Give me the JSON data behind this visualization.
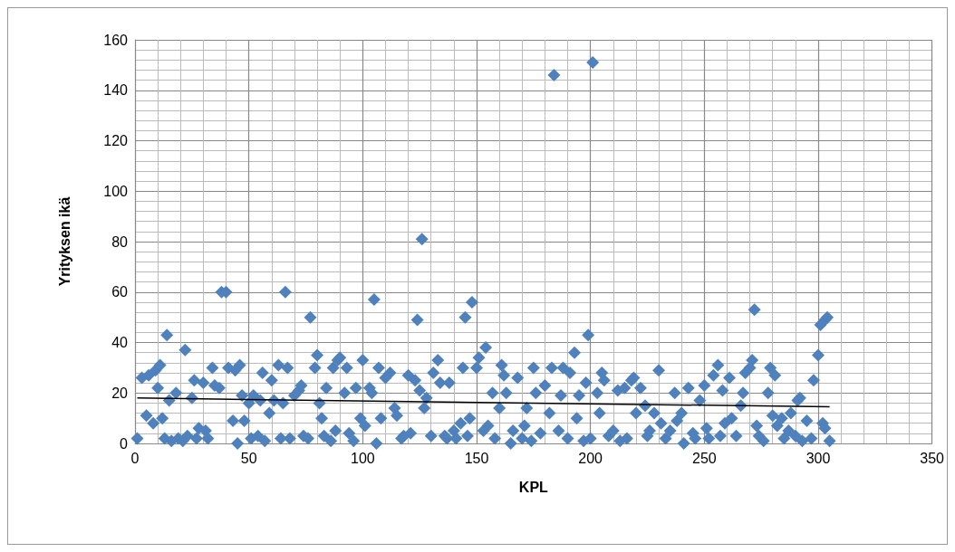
{
  "chart_data": {
    "type": "scatter",
    "xlabel": "KPL",
    "ylabel": "Yrityksen ikä",
    "xlim": [
      0,
      350
    ],
    "xticks": [
      0,
      50,
      100,
      150,
      200,
      250,
      300,
      350
    ],
    "ylim": [
      0,
      160
    ],
    "yticks": [
      0,
      20,
      40,
      60,
      80,
      100,
      120,
      140,
      160
    ],
    "grid": true,
    "series": [
      {
        "marker": "diamond",
        "color": "#4f81bd",
        "x": [
          1,
          3,
          5,
          6,
          8,
          9,
          10,
          11,
          12,
          13,
          14,
          15,
          16,
          18,
          19,
          21,
          22,
          23,
          25,
          26,
          27,
          28,
          30,
          31,
          32,
          34,
          35,
          37,
          38,
          40,
          41,
          43,
          44,
          45,
          46,
          47,
          48,
          50,
          51,
          52,
          54,
          55,
          56,
          57,
          59,
          60,
          61,
          63,
          64,
          65,
          66,
          67,
          68,
          70,
          72,
          73,
          74,
          76,
          77,
          79,
          80,
          81,
          82,
          83,
          84,
          86,
          87,
          88,
          89,
          90,
          92,
          93,
          94,
          96,
          97,
          99,
          100,
          101,
          103,
          104,
          105,
          106,
          107,
          108,
          110,
          112,
          114,
          115,
          117,
          118,
          120,
          121,
          123,
          124,
          125,
          126,
          127,
          128,
          130,
          131,
          133,
          134,
          136,
          137,
          138,
          140,
          141,
          143,
          144,
          145,
          146,
          147,
          148,
          150,
          151,
          153,
          154,
          155,
          157,
          158,
          160,
          161,
          162,
          163,
          165,
          166,
          168,
          170,
          171,
          172,
          174,
          175,
          176,
          178,
          180,
          182,
          183,
          184,
          186,
          187,
          188,
          190,
          191,
          193,
          194,
          195,
          197,
          198,
          199,
          200,
          201,
          203,
          204,
          205,
          206,
          208,
          210,
          212,
          213,
          215,
          216,
          218,
          219,
          220,
          222,
          224,
          225,
          226,
          228,
          230,
          231,
          233,
          235,
          237,
          238,
          240,
          241,
          243,
          245,
          246,
          248,
          250,
          251,
          252,
          254,
          256,
          257,
          258,
          259,
          261,
          262,
          264,
          266,
          267,
          268,
          270,
          271,
          272,
          273,
          274,
          276,
          278,
          279,
          280,
          281,
          282,
          284,
          285,
          287,
          288,
          290,
          291,
          292,
          293,
          295,
          297,
          298,
          300,
          301,
          302,
          303,
          304,
          305,
          303
        ],
        "values": [
          2,
          26,
          11,
          27,
          8,
          29,
          22,
          31,
          10,
          2,
          43,
          17,
          1,
          20,
          2,
          1,
          37,
          3,
          18,
          25,
          2,
          6,
          24,
          5,
          2,
          30,
          23,
          22,
          60,
          60,
          30,
          9,
          29,
          0,
          31,
          19,
          9,
          16,
          2,
          19,
          3,
          17,
          28,
          1,
          12,
          25,
          17,
          31,
          2,
          16,
          60,
          30,
          2,
          19,
          21,
          23,
          3,
          2,
          50,
          30,
          35,
          16,
          10,
          3,
          22,
          1,
          30,
          5,
          33,
          34,
          20,
          30,
          4,
          1,
          22,
          10,
          33,
          7,
          22,
          20,
          57,
          0,
          30,
          10,
          26,
          28,
          14,
          11,
          2,
          3,
          27,
          4,
          25,
          49,
          21,
          81,
          14,
          18,
          3,
          28,
          33,
          24,
          3,
          2,
          24,
          5,
          2,
          8,
          30,
          50,
          3,
          10,
          56,
          30,
          34,
          5,
          38,
          7,
          20,
          2,
          14,
          31,
          27,
          20,
          0,
          5,
          26,
          2,
          7,
          14,
          1,
          30,
          20,
          4,
          23,
          12,
          30,
          146,
          5,
          19,
          30,
          2,
          28,
          36,
          10,
          19,
          1,
          24,
          43,
          2,
          151,
          20,
          12,
          28,
          25,
          3,
          5,
          21,
          1,
          22,
          2,
          25,
          26,
          12,
          22,
          15,
          3,
          5,
          12,
          29,
          8,
          2,
          5,
          20,
          9,
          12,
          0,
          22,
          4,
          2,
          17,
          23,
          6,
          2,
          27,
          31,
          3,
          21,
          8,
          26,
          10,
          3,
          15,
          20,
          28,
          30,
          33,
          53,
          7,
          3,
          1,
          20,
          30,
          11,
          27,
          7,
          10,
          2,
          5,
          12,
          3,
          17,
          18,
          1,
          9,
          2,
          25,
          35,
          47,
          8,
          49,
          50,
          1,
          6
        ]
      },
      {
        "type": "line",
        "marker": "none",
        "color": "#000000",
        "x": [
          1,
          305
        ],
        "values": [
          18,
          14.5
        ]
      }
    ]
  }
}
